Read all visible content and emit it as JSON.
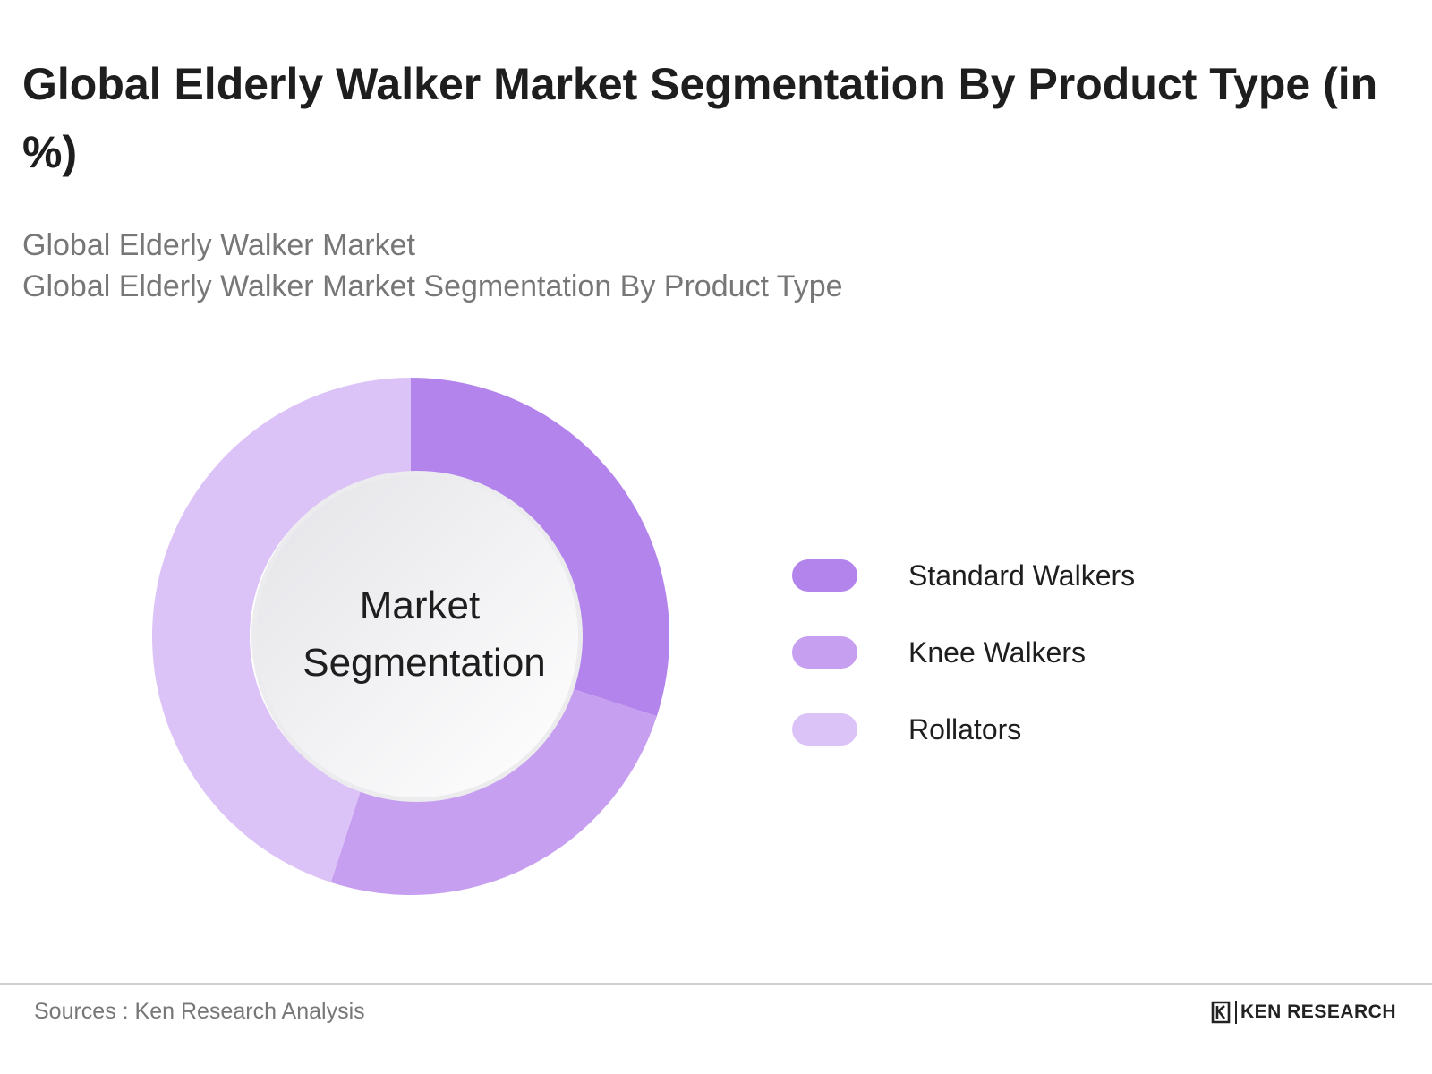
{
  "title": "Global Elderly Walker Market Segmentation By Product Type (in %)",
  "subtitle_line1": "Global Elderly Walker Market",
  "subtitle_line2": "Global Elderly Walker Market Segmentation By Product Type",
  "center_label_line1": "Market",
  "center_label_line2": "Segmentation",
  "source": "Sources : Ken Research Analysis",
  "brand": {
    "name": "KEN RESEARCH",
    "logo_icon": "ken-research-k-logo"
  },
  "colors": {
    "standard_walkers": "#b385ec",
    "knee_walkers": "#c79ff0",
    "rollators": "#dcc3f7"
  },
  "chart_data": {
    "type": "pie",
    "donut": true,
    "title": "Global Elderly Walker Market Segmentation By Product Type (in %)",
    "legend_position": "right",
    "series": [
      {
        "name": "Standard Walkers",
        "value": 30,
        "color": "#b385ec"
      },
      {
        "name": "Knee Walkers",
        "value": 25,
        "color": "#c79ff0"
      },
      {
        "name": "Rollators",
        "value": 45,
        "color": "#dcc3f7"
      }
    ]
  }
}
